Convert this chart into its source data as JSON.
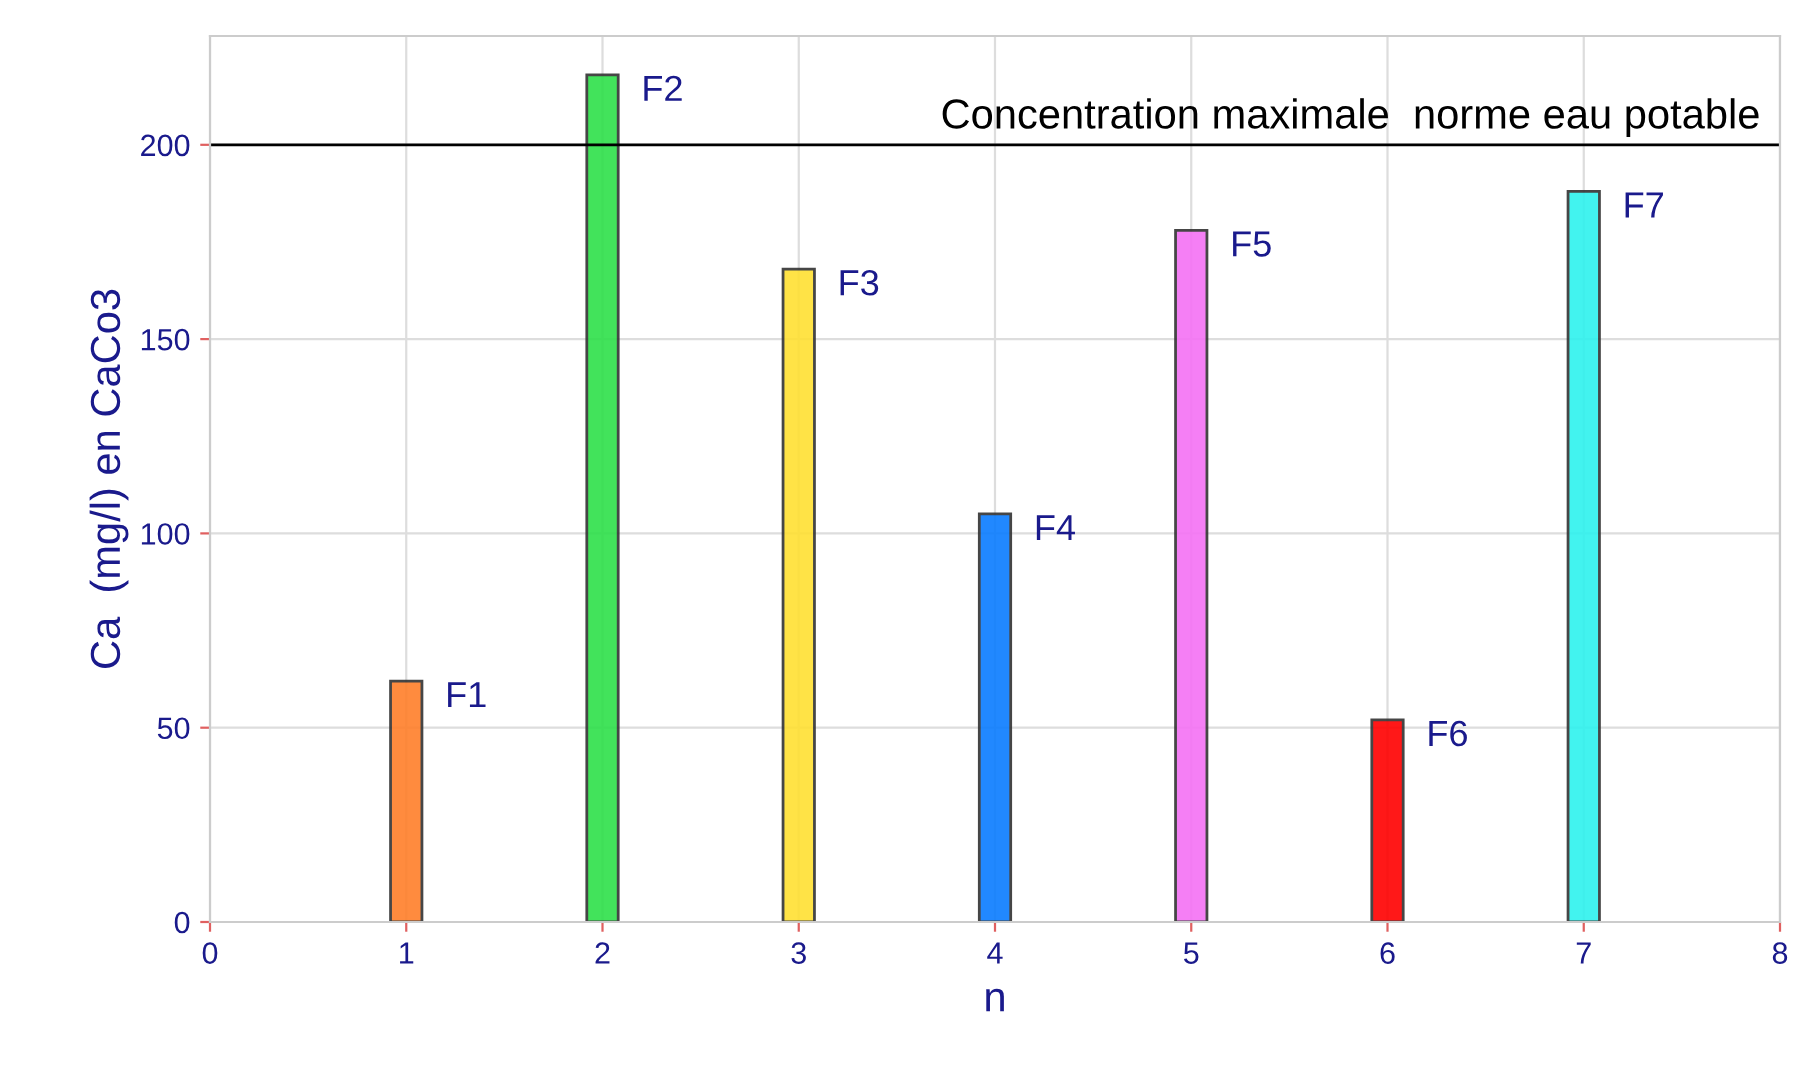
{
  "chart_data": {
    "type": "bar",
    "xlabel": "n",
    "ylabel": "Ca  (mg/l) en CaCo3",
    "x": [
      1,
      2,
      3,
      4,
      5,
      6,
      7
    ],
    "values": [
      62,
      218,
      168,
      105,
      178,
      52,
      188
    ],
    "colors": [
      "#ff7f2a",
      "#2ee04a",
      "#ffe033",
      "#0a7cff",
      "#f572f5",
      "#ff0000",
      "#2ef2ee"
    ],
    "xlim": [
      0,
      8
    ],
    "xticks": [
      0,
      1,
      2,
      3,
      4,
      5,
      6,
      7,
      8
    ],
    "ylim": [
      0,
      228
    ],
    "yticks": [
      0,
      50,
      100,
      150,
      200
    ],
    "grid": true,
    "ref_lines": [
      {
        "axis": "y",
        "value": 200,
        "label": "Concentration maximale  norme eau potable",
        "color": "#000000"
      }
    ],
    "annotations": [
      {
        "text": "F1",
        "x": 1,
        "y": 62
      },
      {
        "text": "F2",
        "x": 2,
        "y": 218
      },
      {
        "text": "F3",
        "x": 3,
        "y": 168
      },
      {
        "text": "F4",
        "x": 4,
        "y": 105
      },
      {
        "text": "F5",
        "x": 5,
        "y": 178
      },
      {
        "text": "F6",
        "x": 6,
        "y": 52
      },
      {
        "text": "F7",
        "x": 7,
        "y": 188
      }
    ]
  }
}
